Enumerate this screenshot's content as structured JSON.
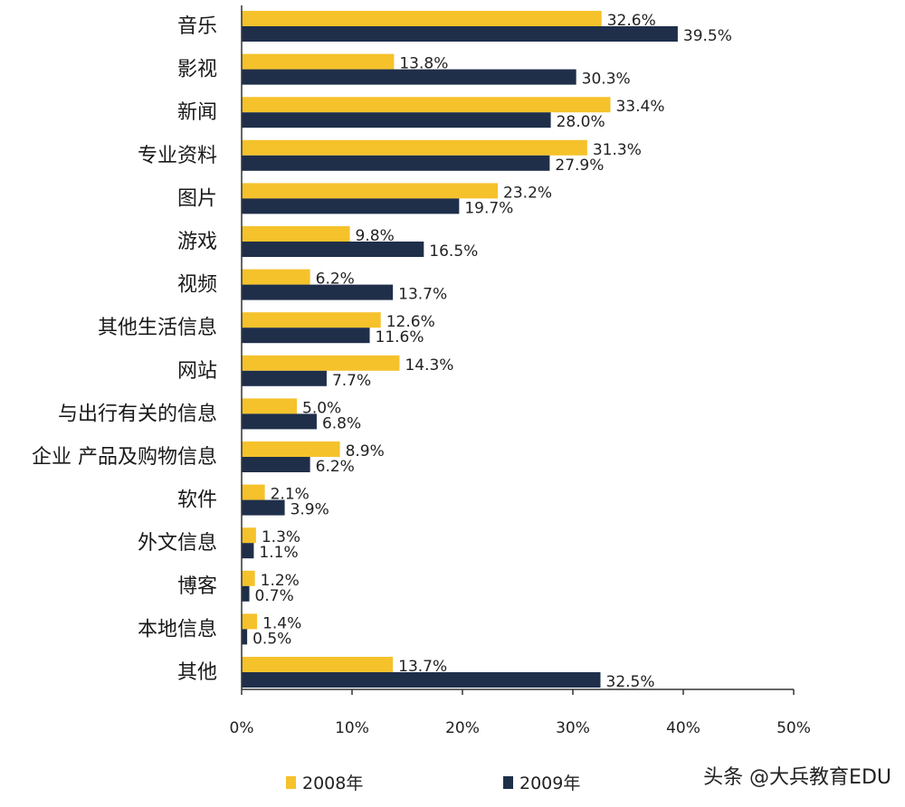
{
  "chart_data": {
    "type": "bar",
    "orientation": "horizontal",
    "categories": [
      "音乐",
      "影视",
      "新闻",
      "专业资料",
      "图片",
      "游戏",
      "视频",
      "其他生活信息",
      "网站",
      "与出行有关的信息",
      "企业 产品及购物信息",
      "软件",
      "外文信息",
      "博客",
      "本地信息",
      "其他"
    ],
    "series": [
      {
        "name": "2008年",
        "color": "#f5c22b",
        "values": [
          32.6,
          13.8,
          33.4,
          31.3,
          23.2,
          9.8,
          6.2,
          12.6,
          14.3,
          5.0,
          8.9,
          2.1,
          1.3,
          1.2,
          1.4,
          13.7
        ],
        "labels": [
          "32.6%",
          "13.8%",
          "33.4%",
          "31.3%",
          "23.2%",
          "9.8%",
          "6.2%",
          "12.6%",
          "14.3%",
          "5.0%",
          "8.9%",
          "2.1%",
          "1.3%",
          "1.2%",
          "1.4%",
          "13.7%"
        ]
      },
      {
        "name": "2009年",
        "color": "#1f2f4a",
        "values": [
          39.5,
          30.3,
          28.0,
          27.9,
          19.7,
          16.5,
          13.7,
          11.6,
          7.7,
          6.8,
          6.2,
          3.9,
          1.1,
          0.7,
          0.5,
          32.5
        ],
        "labels": [
          "39.5%",
          "30.3%",
          "28.0%",
          "27.9%",
          "19.7%",
          "16.5%",
          "13.7%",
          "11.6%",
          "7.7%",
          "6.8%",
          "6.2%",
          "3.9%",
          "1.1%",
          "0.7%",
          "0.5%",
          "32.5%"
        ]
      }
    ],
    "xlim": [
      0,
      50
    ],
    "x_ticks": [
      "0%",
      "10%",
      "20%",
      "30%",
      "40%",
      "50%"
    ],
    "grid": false,
    "legend_position": "bottom"
  },
  "watermark": "头条 @大兵教育EDU"
}
